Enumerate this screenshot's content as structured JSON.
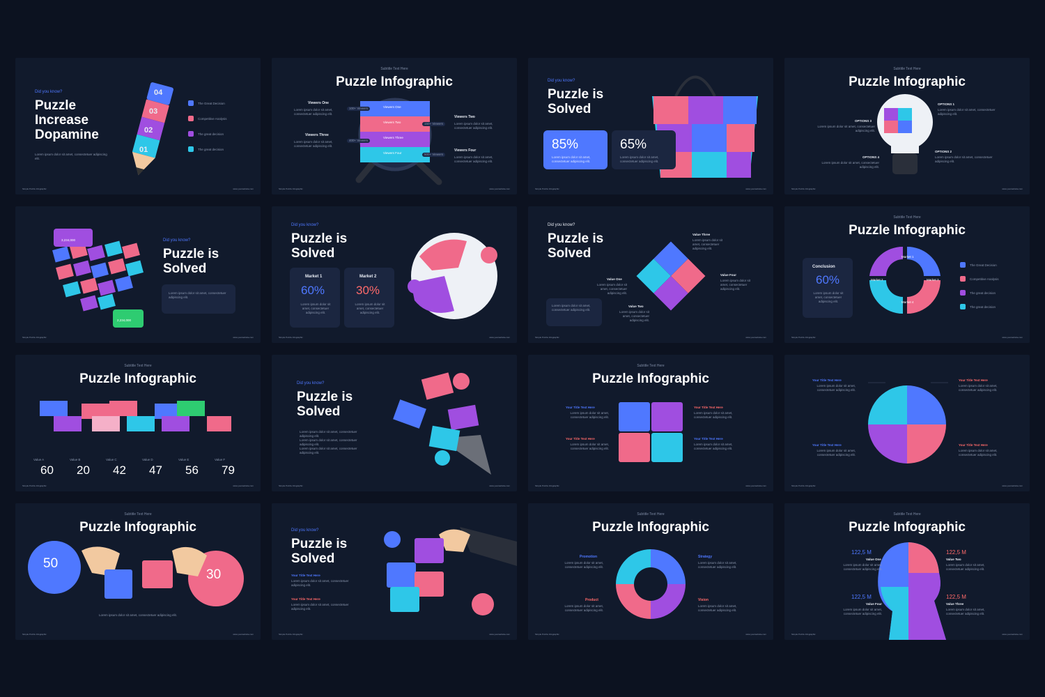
{
  "common": {
    "did_you_know": "Did you know?",
    "subtitle": "Subtitle Text Here",
    "footer_left": "Simple Puzzle Infographic",
    "footer_right": "www.yourwebsite.com",
    "lorem": "Lorem ipsum dolor sit amet, consectetuer adipiscing elit.",
    "colors": {
      "bg": "#0c1220",
      "slide": "#111a2c",
      "blue": "#4f78ff",
      "red": "#ff6a6a",
      "purple": "#a04ee0",
      "cyan": "#2ec7e8",
      "pink": "#f06a8a"
    }
  },
  "slides": [
    {
      "title": "Puzzle Increase Dopamine",
      "numbers": [
        "04",
        "03",
        "02",
        "01"
      ],
      "legend": [
        "The Great Decision",
        "Competitive Analysis",
        "The great decision",
        "The great decision"
      ]
    },
    {
      "title": "Puzzle Infographic",
      "viewers": [
        "Viewers One",
        "Viewers Two",
        "Viewers Three",
        "Viewers Four"
      ],
      "bars": [
        "Viewers One",
        "Viewers Two",
        "Viewers Three",
        "Viewers Four"
      ],
      "tags": [
        "100+ Viewers",
        "150+ Viewers",
        "400+ Viewers",
        "500+ Viewers"
      ]
    },
    {
      "title": "Puzzle is Solved",
      "pct1": "85%",
      "pct2": "65%"
    },
    {
      "title": "Puzzle Infographic",
      "options": [
        "OPTIONS 1",
        "OPTIONS 2",
        "OPTIONS 3",
        "OPTIONS 4"
      ]
    },
    {
      "title": "Puzzle is Solved",
      "tag1": "3,234,000",
      "tag2": "2,234,000"
    },
    {
      "title": "Puzzle is Solved",
      "market1": "Market 1",
      "market2": "Market 2",
      "pct1": "60%",
      "pct2": "30%"
    },
    {
      "title": "Puzzle is Solved",
      "values": [
        "Value One",
        "Value Two",
        "Value Three",
        "Value Four"
      ]
    },
    {
      "title": "Puzzle Infographic",
      "conclusion": "Conclusion",
      "pct": "60%",
      "markets": [
        "Market 1",
        "Market 2",
        "Market 3",
        "Market 4"
      ],
      "legend": [
        "The Great Decision",
        "Competitive Analysis",
        "The great decision",
        "The great decision"
      ]
    },
    {
      "title": "Puzzle Infographic",
      "values": [
        {
          "label": "Value A",
          "num": "60"
        },
        {
          "label": "Value B",
          "num": "20"
        },
        {
          "label": "Value C",
          "num": "42"
        },
        {
          "label": "Value D",
          "num": "47"
        },
        {
          "label": "Value E",
          "num": "56"
        },
        {
          "label": "Value F",
          "num": "79"
        }
      ]
    },
    {
      "title": "Puzzle is Solved"
    },
    {
      "title": "Puzzle Infographic",
      "heads": [
        "Your Title Text Here",
        "Your Title Text Here",
        "Your Title Text Here",
        "Your Title Text Here"
      ]
    },
    {
      "heads": [
        "Your Title Text Here",
        "Your Title Text Here",
        "Your Title Text Here",
        "Your Title Text Here"
      ]
    },
    {
      "title": "Puzzle Infographic",
      "pct1": "50",
      "pct2": "30"
    },
    {
      "title": "Puzzle is Solved",
      "heads": [
        "Your Title Text Here",
        "Your Title Text Here"
      ]
    },
    {
      "title": "Puzzle Infographic",
      "labels": [
        "Promotion",
        "Strategy",
        "Product",
        "Vision"
      ]
    },
    {
      "title": "Puzzle Infographic",
      "values": [
        {
          "num": "122,5 M",
          "label": "Value One"
        },
        {
          "num": "122,5 M",
          "label": "Value Two"
        },
        {
          "num": "122,5 M",
          "label": "Value Four"
        },
        {
          "num": "122,5 M",
          "label": "Value Three"
        }
      ]
    }
  ]
}
